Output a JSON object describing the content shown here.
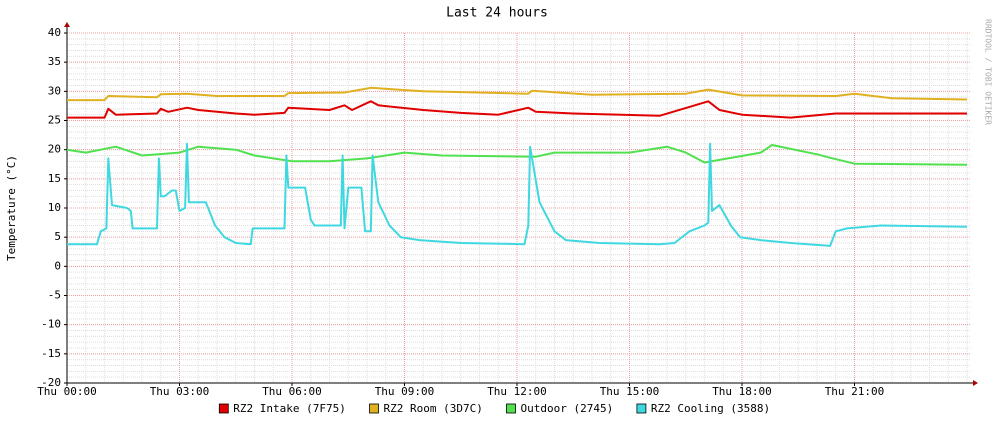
{
  "chart_data": {
    "type": "line",
    "title": "Last 24 hours",
    "y_label": "Temperature (°C)",
    "watermark": "RRDTOOL / TOBI OETIKER",
    "xlim": [
      0,
      24.08
    ],
    "ylim": [
      -20,
      40
    ],
    "xticks": [
      {
        "value": 0,
        "label": "Thu 00:00"
      },
      {
        "value": 3,
        "label": "Thu 03:00"
      },
      {
        "value": 6,
        "label": "Thu 06:00"
      },
      {
        "value": 9,
        "label": "Thu 09:00"
      },
      {
        "value": 12,
        "label": "Thu 12:00"
      },
      {
        "value": 15,
        "label": "Thu 15:00"
      },
      {
        "value": 18,
        "label": "Thu 18:00"
      },
      {
        "value": 21,
        "label": "Thu 21:00"
      }
    ],
    "yticks": [
      -20,
      -15,
      -10,
      -5,
      0,
      5,
      10,
      15,
      20,
      25,
      30,
      35,
      40
    ],
    "grid": true,
    "series": [
      {
        "name": "RZ2 Intake (7F75)",
        "color": "#e00000",
        "x": [
          0,
          1.0,
          1.1,
          1.3,
          2.4,
          2.5,
          2.7,
          3.2,
          3.5,
          4.5,
          5.0,
          5.8,
          5.9,
          7.0,
          7.4,
          7.6,
          8.1,
          8.3,
          9.5,
          10.5,
          11.5,
          12.3,
          12.5,
          13.5,
          15.8,
          17.1,
          17.4,
          18.0,
          19.3,
          20.5,
          24.0
        ],
        "values": [
          25.5,
          25.5,
          27,
          26,
          26.2,
          27,
          26.5,
          27.2,
          26.8,
          26.2,
          26,
          26.3,
          27.2,
          26.8,
          27.6,
          26.8,
          28.3,
          27.6,
          26.8,
          26.3,
          26,
          27.2,
          26.5,
          26.2,
          25.8,
          28.3,
          26.8,
          26,
          25.5,
          26.2,
          26.2
        ]
      },
      {
        "name": "RZ2 Room (3D7C)",
        "color": "#e0b020",
        "x": [
          0,
          1.0,
          1.1,
          2.4,
          2.5,
          3.2,
          4.0,
          5.8,
          5.9,
          7.4,
          8.1,
          9.5,
          12.3,
          12.4,
          14.0,
          16.5,
          17.1,
          18.0,
          20.5,
          21.0,
          22.0,
          24.0
        ],
        "values": [
          28.5,
          28.5,
          29.2,
          29,
          29.5,
          29.6,
          29.2,
          29.2,
          29.7,
          29.8,
          30.6,
          30,
          29.6,
          30.1,
          29.4,
          29.6,
          30.3,
          29.3,
          29.2,
          29.6,
          28.8,
          28.6
        ]
      },
      {
        "name": "Outdoor (2745)",
        "color": "#50e050",
        "x": [
          0,
          0.5,
          1.3,
          2.0,
          3.0,
          3.5,
          4.5,
          5.0,
          6.0,
          7.0,
          8.0,
          9.0,
          10.0,
          12.5,
          13.0,
          15.0,
          16.0,
          16.5,
          17.0,
          18.5,
          18.8,
          20.0,
          20.3,
          21.0,
          24.0
        ],
        "values": [
          20,
          19.5,
          20.5,
          19,
          19.5,
          20.5,
          20,
          19,
          18,
          18,
          18.5,
          19.5,
          19,
          18.8,
          19.5,
          19.5,
          20.5,
          19.5,
          17.8,
          19.5,
          20.8,
          19.2,
          18.7,
          17.6,
          17.4
        ]
      },
      {
        "name": "RZ2 Cooling (3588)",
        "color": "#40d8e0",
        "x": [
          0,
          0.8,
          0.9,
          1.05,
          1.1,
          1.2,
          1.6,
          1.7,
          1.75,
          2.4,
          2.45,
          2.5,
          2.6,
          2.8,
          2.9,
          3.0,
          3.15,
          3.2,
          3.25,
          3.7,
          3.95,
          4.2,
          4.5,
          4.9,
          4.95,
          5.8,
          5.85,
          5.9,
          6.0,
          6.35,
          6.5,
          6.6,
          7.3,
          7.35,
          7.4,
          7.5,
          7.85,
          7.95,
          8.1,
          8.15,
          8.3,
          8.6,
          8.9,
          9.4,
          10.5,
          12.2,
          12.3,
          12.35,
          12.6,
          13.0,
          13.3,
          14.2,
          15.8,
          16.2,
          16.6,
          17.0,
          17.1,
          17.15,
          17.2,
          17.4,
          17.7,
          17.95,
          18.5,
          19.3,
          20.35,
          20.5,
          20.8,
          21.7,
          24.0
        ],
        "values": [
          3.8,
          3.8,
          6,
          6.5,
          18.5,
          10.5,
          10,
          9.5,
          6.5,
          6.5,
          18.5,
          12,
          12,
          13,
          13,
          9.5,
          10,
          21,
          11,
          11,
          7,
          5,
          4,
          3.8,
          6.5,
          6.5,
          19,
          13.5,
          13.5,
          13.5,
          8,
          7,
          7,
          19,
          6.5,
          13.5,
          13.5,
          6,
          6,
          19,
          11,
          7,
          5,
          4.5,
          4,
          3.8,
          7,
          20.5,
          11,
          6,
          4.5,
          4,
          3.8,
          4,
          6,
          7,
          7.5,
          21,
          9.5,
          10.5,
          7,
          5,
          4.5,
          4,
          3.5,
          6,
          6.5,
          7,
          6.8
        ]
      }
    ]
  }
}
